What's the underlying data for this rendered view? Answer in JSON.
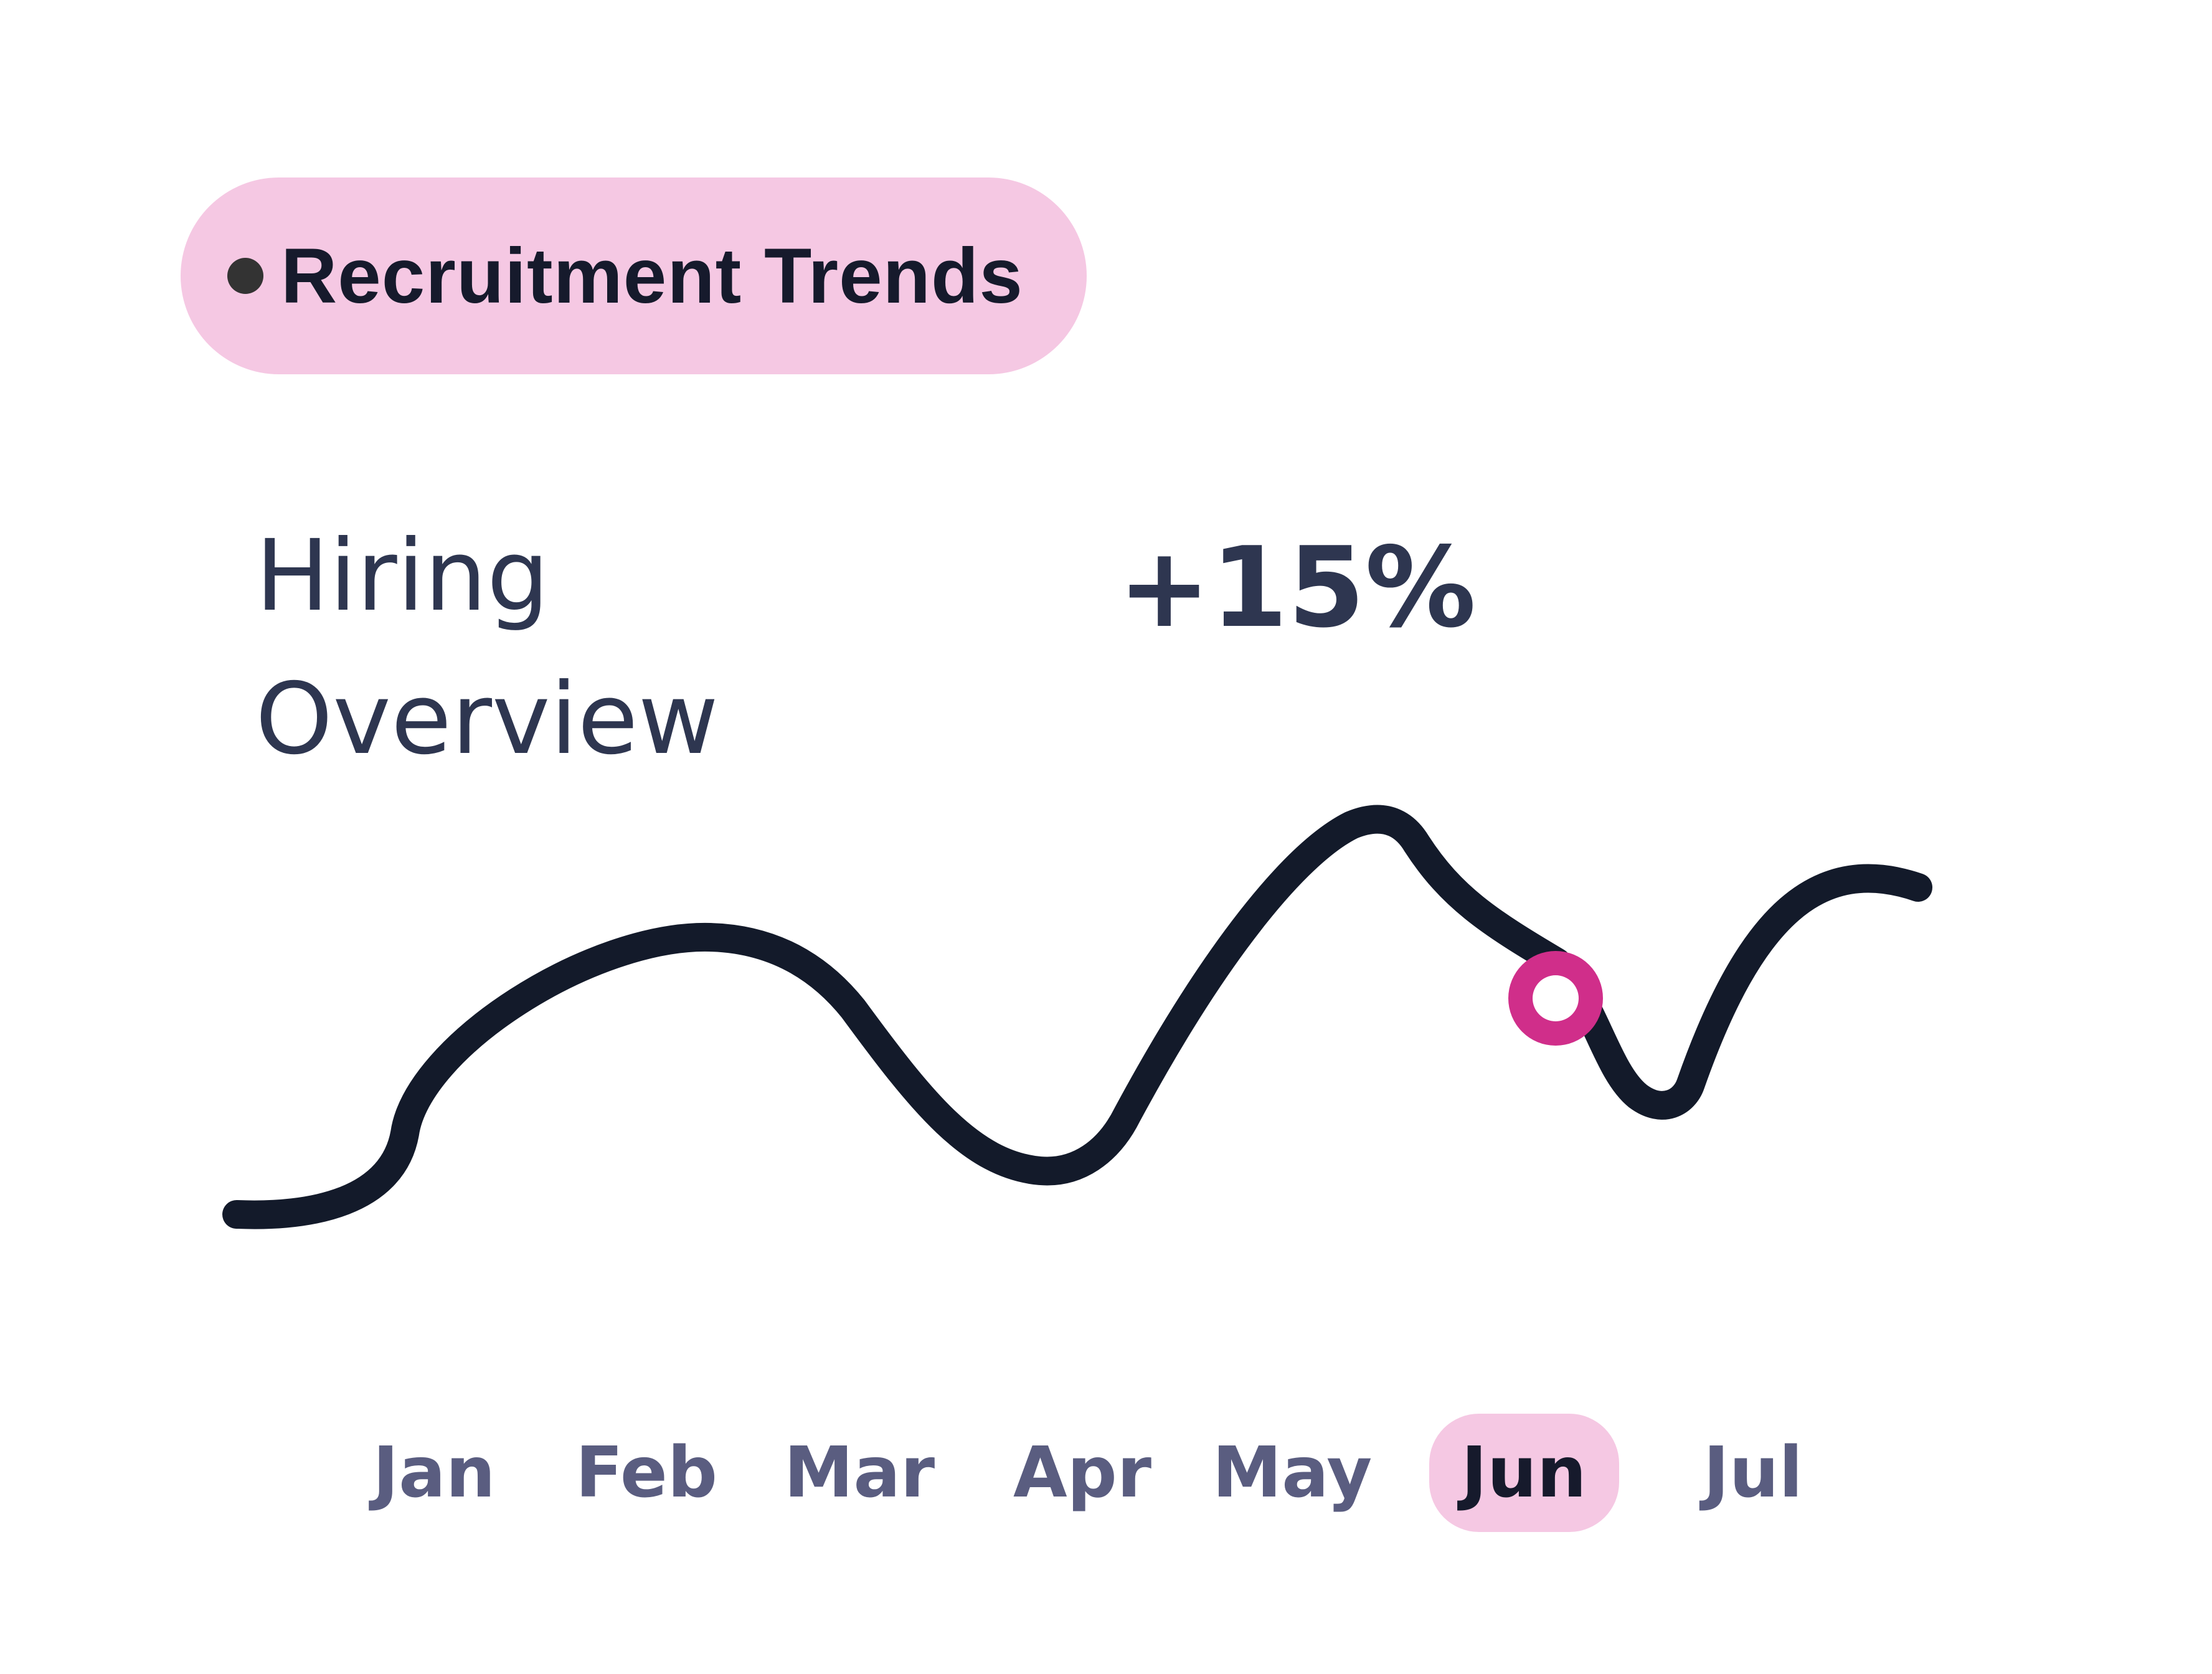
{
  "badge": {
    "label": "Recruitment Trends",
    "bg_color": "#f5c8e3",
    "dot_color": "#333333"
  },
  "title": {
    "line1": "Hiring",
    "line2": "Overview"
  },
  "change_label": "+15%",
  "chart_data": {
    "type": "line",
    "categories": [
      "Jan",
      "Feb",
      "Mar",
      "Apr",
      "May",
      "Jun",
      "Jul"
    ],
    "selected_category": "Jun",
    "series_shape_note": "unlabeled line with no y-axis",
    "line_color": "#131a2a",
    "marker_color": "#d02e8a",
    "highlight_color": "#f5c8e3",
    "grid": false,
    "legend": "none"
  }
}
